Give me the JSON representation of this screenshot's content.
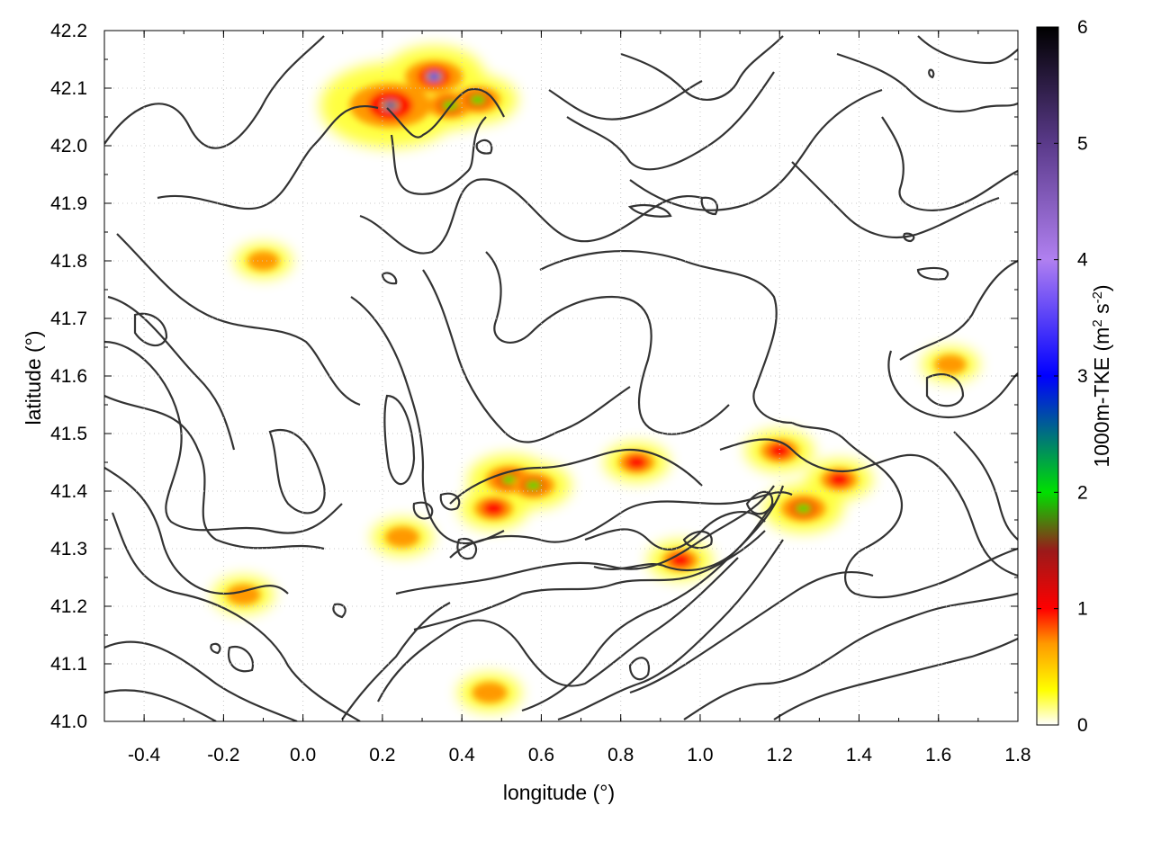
{
  "chart_data": {
    "type": "heatmap",
    "title": "",
    "xlabel": "longitude (°)",
    "ylabel": "latitude (°)",
    "xlim": [
      -0.5,
      1.8
    ],
    "ylim": [
      41.0,
      42.2
    ],
    "x_ticks": [
      "-0.4",
      "-0.2",
      "0.0",
      "0.2",
      "0.4",
      "0.6",
      "0.8",
      "1.0",
      "1.2",
      "1.4",
      "1.6",
      "1.8"
    ],
    "x_tick_values": [
      -0.4,
      -0.2,
      0.0,
      0.2,
      0.4,
      0.6,
      0.8,
      1.0,
      1.2,
      1.4,
      1.6,
      1.8
    ],
    "y_ticks": [
      "41.0",
      "41.1",
      "41.2",
      "41.3",
      "41.4",
      "41.5",
      "41.6",
      "41.7",
      "41.8",
      "41.9",
      "42.0",
      "42.1",
      "42.2"
    ],
    "y_tick_values": [
      41.0,
      41.1,
      41.2,
      41.3,
      41.4,
      41.5,
      41.6,
      41.7,
      41.8,
      41.9,
      42.0,
      42.1,
      42.2
    ],
    "grid": true,
    "colorbar": {
      "label_main": "1000m-TKE (m",
      "label_sup1": "2",
      "label_mid": " s",
      "label_sup2": "-2",
      "label_end": ")",
      "range": [
        0,
        6
      ],
      "ticks": [
        "0",
        "1",
        "2",
        "3",
        "4",
        "5",
        "6"
      ],
      "tick_values": [
        0,
        1,
        2,
        3,
        4,
        5,
        6
      ],
      "colors": [
        {
          "v": 0.0,
          "c": "#ffffff"
        },
        {
          "v": 0.3,
          "c": "#ffff00"
        },
        {
          "v": 0.7,
          "c": "#ff9900"
        },
        {
          "v": 1.0,
          "c": "#ff0000"
        },
        {
          "v": 1.5,
          "c": "#9a1a1a"
        },
        {
          "v": 2.0,
          "c": "#00e000"
        },
        {
          "v": 3.0,
          "c": "#0000ff"
        },
        {
          "v": 4.0,
          "c": "#b080f0"
        },
        {
          "v": 5.0,
          "c": "#5a3a8a"
        },
        {
          "v": 6.0,
          "c": "#000000"
        }
      ]
    },
    "tke_hotspots": [
      {
        "lon": 0.22,
        "lat": 42.07,
        "value": 5.2
      },
      {
        "lon": 0.33,
        "lat": 42.12,
        "value": 3.0
      },
      {
        "lon": 0.37,
        "lat": 42.07,
        "value": 1.8
      },
      {
        "lon": 0.44,
        "lat": 42.08,
        "value": 1.8
      },
      {
        "lon": 0.52,
        "lat": 41.42,
        "value": 2.0
      },
      {
        "lon": 0.58,
        "lat": 41.41,
        "value": 1.6
      },
      {
        "lon": 0.48,
        "lat": 41.37,
        "value": 1.2
      },
      {
        "lon": 0.84,
        "lat": 41.45,
        "value": 1.0
      },
      {
        "lon": 1.2,
        "lat": 41.47,
        "value": 1.2
      },
      {
        "lon": 1.26,
        "lat": 41.37,
        "value": 1.8
      },
      {
        "lon": 1.35,
        "lat": 41.42,
        "value": 1.1
      },
      {
        "lon": 0.95,
        "lat": 41.28,
        "value": 1.0
      },
      {
        "lon": -0.15,
        "lat": 41.22,
        "value": 0.8
      },
      {
        "lon": 0.25,
        "lat": 41.32,
        "value": 0.8
      },
      {
        "lon": 0.47,
        "lat": 41.05,
        "value": 0.9
      },
      {
        "lon": -0.1,
        "lat": 41.8,
        "value": 0.6
      },
      {
        "lon": 1.63,
        "lat": 41.62,
        "value": 0.6
      }
    ]
  }
}
